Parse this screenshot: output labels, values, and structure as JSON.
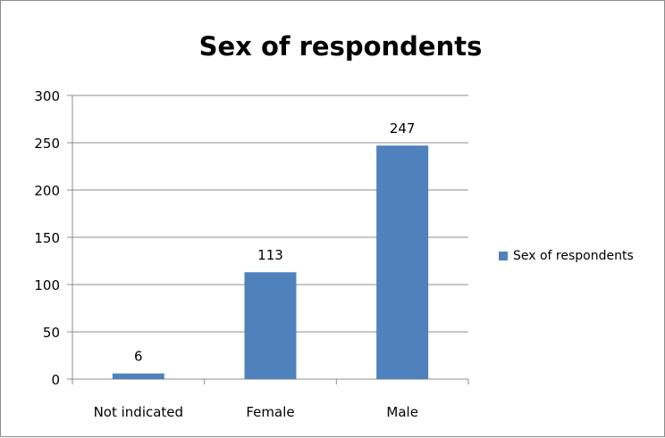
{
  "chart_data": {
    "type": "bar",
    "title": "Sex of respondents",
    "categories": [
      "Not indicated",
      "Female",
      "Male"
    ],
    "series": [
      {
        "name": "Sex of respondents",
        "values": [
          6,
          113,
          247
        ],
        "color": "#4f81bd"
      }
    ],
    "data_labels": [
      "6",
      "113",
      "247"
    ],
    "ylim": [
      0,
      300
    ],
    "yticks": [
      0,
      50,
      100,
      150,
      200,
      250,
      300
    ],
    "ytick_labels": [
      "0",
      "50",
      "100",
      "150",
      "200",
      "250",
      "300"
    ],
    "grid": true,
    "legend_position": "right"
  }
}
